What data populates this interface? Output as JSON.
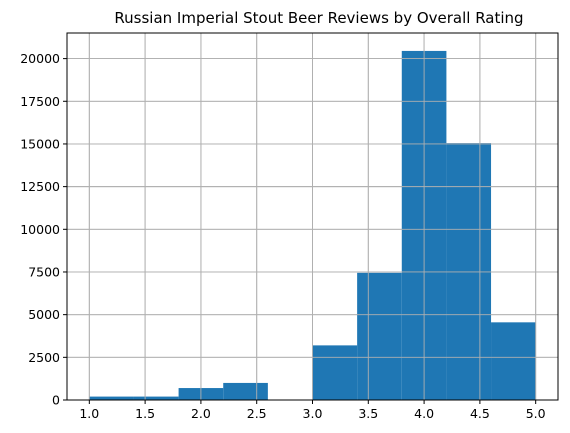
{
  "chart_data": {
    "type": "histogram",
    "title": "Russian Imperial Stout Beer Reviews by Overall Rating",
    "xlabel": "",
    "ylabel": "",
    "bins": [
      {
        "x0": 1.0,
        "x1": 1.4,
        "value": 200
      },
      {
        "x0": 1.4,
        "x1": 1.8,
        "value": 200
      },
      {
        "x0": 1.8,
        "x1": 2.2,
        "value": 700
      },
      {
        "x0": 2.2,
        "x1": 2.6,
        "value": 1000
      },
      {
        "x0": 2.6,
        "x1": 3.0,
        "value": 0
      },
      {
        "x0": 3.0,
        "x1": 3.4,
        "value": 3200
      },
      {
        "x0": 3.4,
        "x1": 3.8,
        "value": 7450
      },
      {
        "x0": 3.8,
        "x1": 4.2,
        "value": 20450
      },
      {
        "x0": 4.2,
        "x1": 4.6,
        "value": 15050
      },
      {
        "x0": 4.6,
        "x1": 5.0,
        "value": 4550
      }
    ],
    "xlim": [
      0.8,
      5.2
    ],
    "ylim": [
      0,
      21500
    ],
    "xticks": [
      1.0,
      1.5,
      2.0,
      2.5,
      3.0,
      3.5,
      4.0,
      4.5,
      5.0
    ],
    "xtick_labels": [
      "1.0",
      "1.5",
      "2.0",
      "2.5",
      "3.0",
      "3.5",
      "4.0",
      "4.5",
      "5.0"
    ],
    "yticks": [
      0,
      2500,
      5000,
      7500,
      10000,
      12500,
      15000,
      17500,
      20000
    ],
    "ytick_labels": [
      "0",
      "2500",
      "5000",
      "7500",
      "10000",
      "12500",
      "15000",
      "17500",
      "20000"
    ],
    "grid": true,
    "colors": {
      "bar": "#1f77b4",
      "grid": "#b0b0b0",
      "axis": "#000000"
    }
  }
}
